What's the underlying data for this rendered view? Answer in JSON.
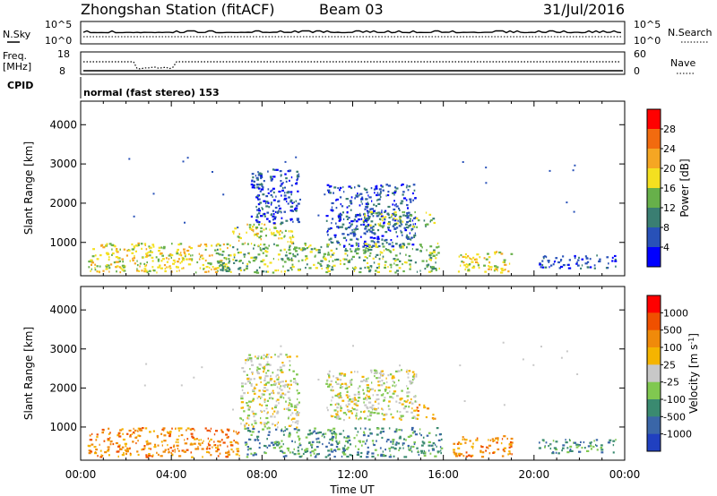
{
  "header": {
    "station": "Zhongshan Station (fitACF)",
    "beam": "Beam 03",
    "date": "31/Jul/2016"
  },
  "top_panels": {
    "nsky": {
      "label": "N.Sky",
      "ticks_left": [
        "10^5",
        "10^0"
      ],
      "ticks_right": [
        "10^5",
        "10^0"
      ],
      "right_label": "N.Search"
    },
    "freq": {
      "label_line1": "Freq.",
      "label_line2": "[MHz]",
      "ticks_left": [
        "18",
        "8"
      ],
      "ticks_right": [
        "60",
        "0"
      ],
      "right_label": "Nave"
    },
    "cpid": {
      "label": "CPID",
      "mode": "normal (fast stereo) 153"
    }
  },
  "chart_data": [
    {
      "type": "heatmap",
      "name": "power",
      "ylabel": "Slant Range [km]",
      "xlabel": "",
      "ylim": [
        150,
        4600
      ],
      "xlim": [
        0,
        24
      ],
      "yticks": [
        "1000",
        "2000",
        "3000",
        "4000"
      ],
      "colorbar": {
        "label": "Power [dB]",
        "ticks": [
          "4",
          "8",
          "12",
          "16",
          "20",
          "24",
          "28"
        ],
        "colors": [
          "#0000ff",
          "#2851b8",
          "#3a7e72",
          "#67b04a",
          "#f4e020",
          "#f5a623",
          "#f26b0f",
          "#ff0000"
        ]
      },
      "regions": [
        {
          "t0": 0.3,
          "t1": 6.5,
          "r0": 250,
          "r1": 1000,
          "level": 4
        },
        {
          "t0": 6.6,
          "t1": 9.4,
          "r0": 1000,
          "r1": 1500,
          "level": 4
        },
        {
          "t0": 7.5,
          "t1": 9.6,
          "r0": 1500,
          "r1": 2900,
          "level": 1
        },
        {
          "t0": 10.8,
          "t1": 14.8,
          "r0": 900,
          "r1": 2500,
          "level": 1
        },
        {
          "t0": 12.4,
          "t1": 15.6,
          "r0": 1400,
          "r1": 1800,
          "level": 3
        },
        {
          "t0": 6.0,
          "t1": 15.8,
          "r0": 250,
          "r1": 1000,
          "level": 3
        },
        {
          "t0": 16.6,
          "t1": 19.0,
          "r0": 250,
          "r1": 800,
          "level": 4
        },
        {
          "t0": 20.2,
          "t1": 23.6,
          "r0": 350,
          "r1": 700,
          "level": 1
        }
      ]
    },
    {
      "type": "heatmap",
      "name": "velocity",
      "ylabel": "Slant Range [km]",
      "xlabel": "Time UT",
      "ylim": [
        150,
        4600
      ],
      "xlim": [
        0,
        24
      ],
      "yticks": [
        "1000",
        "2000",
        "3000",
        "4000"
      ],
      "xticks": [
        "00:00",
        "04:00",
        "08:00",
        "12:00",
        "16:00",
        "20:00",
        "00:00"
      ],
      "colorbar": {
        "label": "Velocity [m s",
        "label_superscript": "-1",
        "label_suffix": "]",
        "ticks": [
          "1000",
          "500",
          "100",
          "25",
          "-25",
          "-100",
          "-500",
          "-1000"
        ],
        "colors": [
          "#2040c0",
          "#3a66a8",
          "#3a8a70",
          "#80c850",
          "#c8c8c8",
          "#f5b400",
          "#f08a0a",
          "#f05000",
          "#ff0000"
        ]
      },
      "regions": [
        {
          "t0": 0.3,
          "t1": 7.0,
          "r0": 250,
          "r1": 1000,
          "level": 6
        },
        {
          "t0": 7.0,
          "t1": 9.6,
          "r0": 1000,
          "r1": 2900,
          "level": 4
        },
        {
          "t0": 10.8,
          "t1": 14.8,
          "r0": 1200,
          "r1": 2500,
          "level": 4
        },
        {
          "t0": 7.2,
          "t1": 16.0,
          "r0": 250,
          "r1": 1000,
          "level": 2
        },
        {
          "t0": 14.8,
          "t1": 15.6,
          "r0": 1200,
          "r1": 1600,
          "level": 6
        },
        {
          "t0": 16.4,
          "t1": 19.0,
          "r0": 250,
          "r1": 800,
          "level": 6
        },
        {
          "t0": 20.2,
          "t1": 23.6,
          "r0": 350,
          "r1": 700,
          "level": 2
        }
      ]
    }
  ]
}
